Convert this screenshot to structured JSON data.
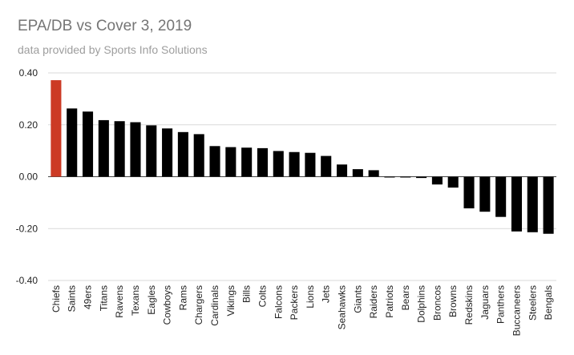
{
  "chart_data": {
    "type": "bar",
    "title": "EPA/DB vs Cover 3, 2019",
    "subtitle": "data provided by Sports Info Solutions",
    "xlabel": "",
    "ylabel": "",
    "ylim": [
      -0.4,
      0.4
    ],
    "yticks": [
      "0.40",
      "0.20",
      "0.00",
      "-0.20",
      "-0.40"
    ],
    "grid": true,
    "highlight_color": "#cc3a24",
    "bar_color": "#000000",
    "categories": [
      "Chiefs",
      "Saints",
      "49ers",
      "Titans",
      "Ravens",
      "Texans",
      "Eagles",
      "Cowboys",
      "Rams",
      "Chargers",
      "Cardinals",
      "Vikings",
      "Bills",
      "Colts",
      "Falcons",
      "Packers",
      "Lions",
      "Jets",
      "Seahawks",
      "Giants",
      "Raiders",
      "Patriots",
      "Bears",
      "Dolphins",
      "Broncos",
      "Browns",
      "Redskins",
      "Jaguars",
      "Panthers",
      "Buccaneers",
      "Steelers",
      "Bengals"
    ],
    "values": [
      0.372,
      0.263,
      0.251,
      0.218,
      0.214,
      0.21,
      0.198,
      0.186,
      0.172,
      0.164,
      0.118,
      0.114,
      0.112,
      0.11,
      0.099,
      0.095,
      0.092,
      0.08,
      0.047,
      0.029,
      0.025,
      -0.001,
      -0.002,
      -0.005,
      -0.03,
      -0.042,
      -0.122,
      -0.135,
      -0.155,
      -0.211,
      -0.214,
      -0.22
    ],
    "highlighted": [
      "Chiefs"
    ]
  }
}
